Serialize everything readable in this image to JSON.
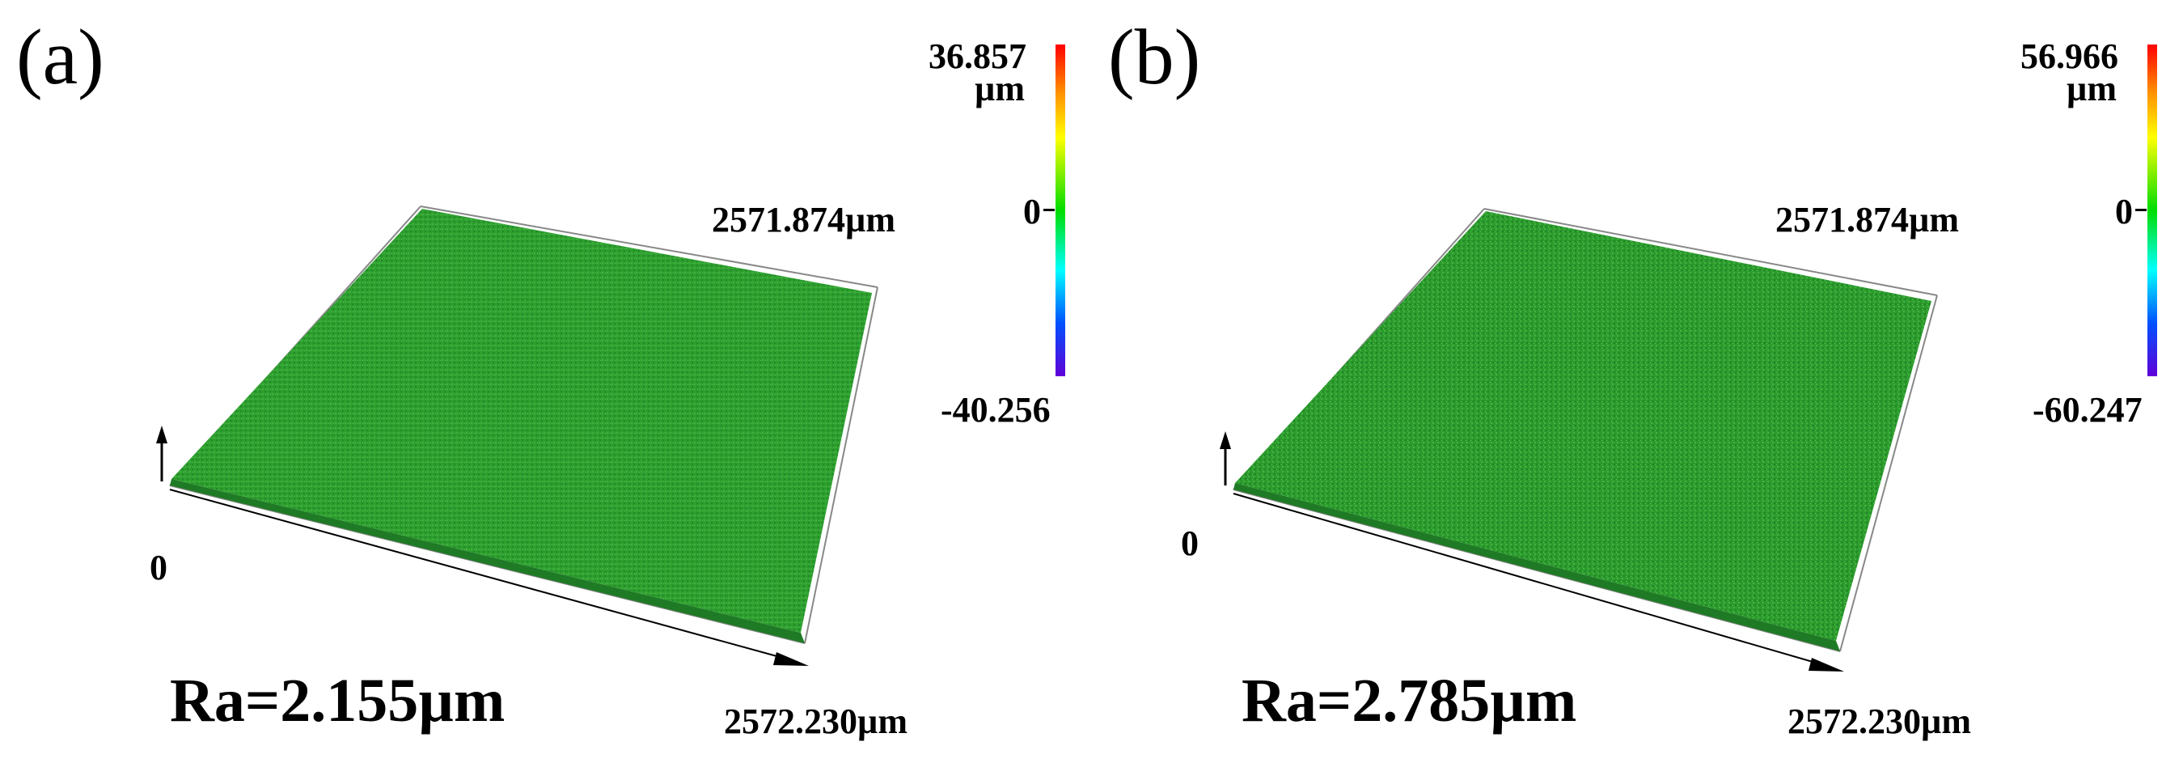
{
  "panels": [
    {
      "label": "(a)",
      "colorbar": {
        "max": "36.857",
        "unit": "µm",
        "mid": "0",
        "min": "-40.256"
      },
      "axes": {
        "y_extent": "2571.874µm",
        "x_extent": "2572.230µm",
        "origin": "0"
      },
      "roughness": "Ra=2.155µm"
    },
    {
      "label": "(b)",
      "colorbar": {
        "max": "56.966",
        "unit": "µm",
        "mid": "0",
        "min": "-60.247"
      },
      "axes": {
        "y_extent": "2571.874µm",
        "x_extent": "2572.230µm",
        "origin": "0"
      },
      "roughness": "Ra=2.785µm"
    }
  ],
  "colors": {
    "surface": "#2a9a2a",
    "colorbar_top": "#ff0000",
    "colorbar_mid": "#00dd00",
    "colorbar_bottom": "#6000d8"
  }
}
